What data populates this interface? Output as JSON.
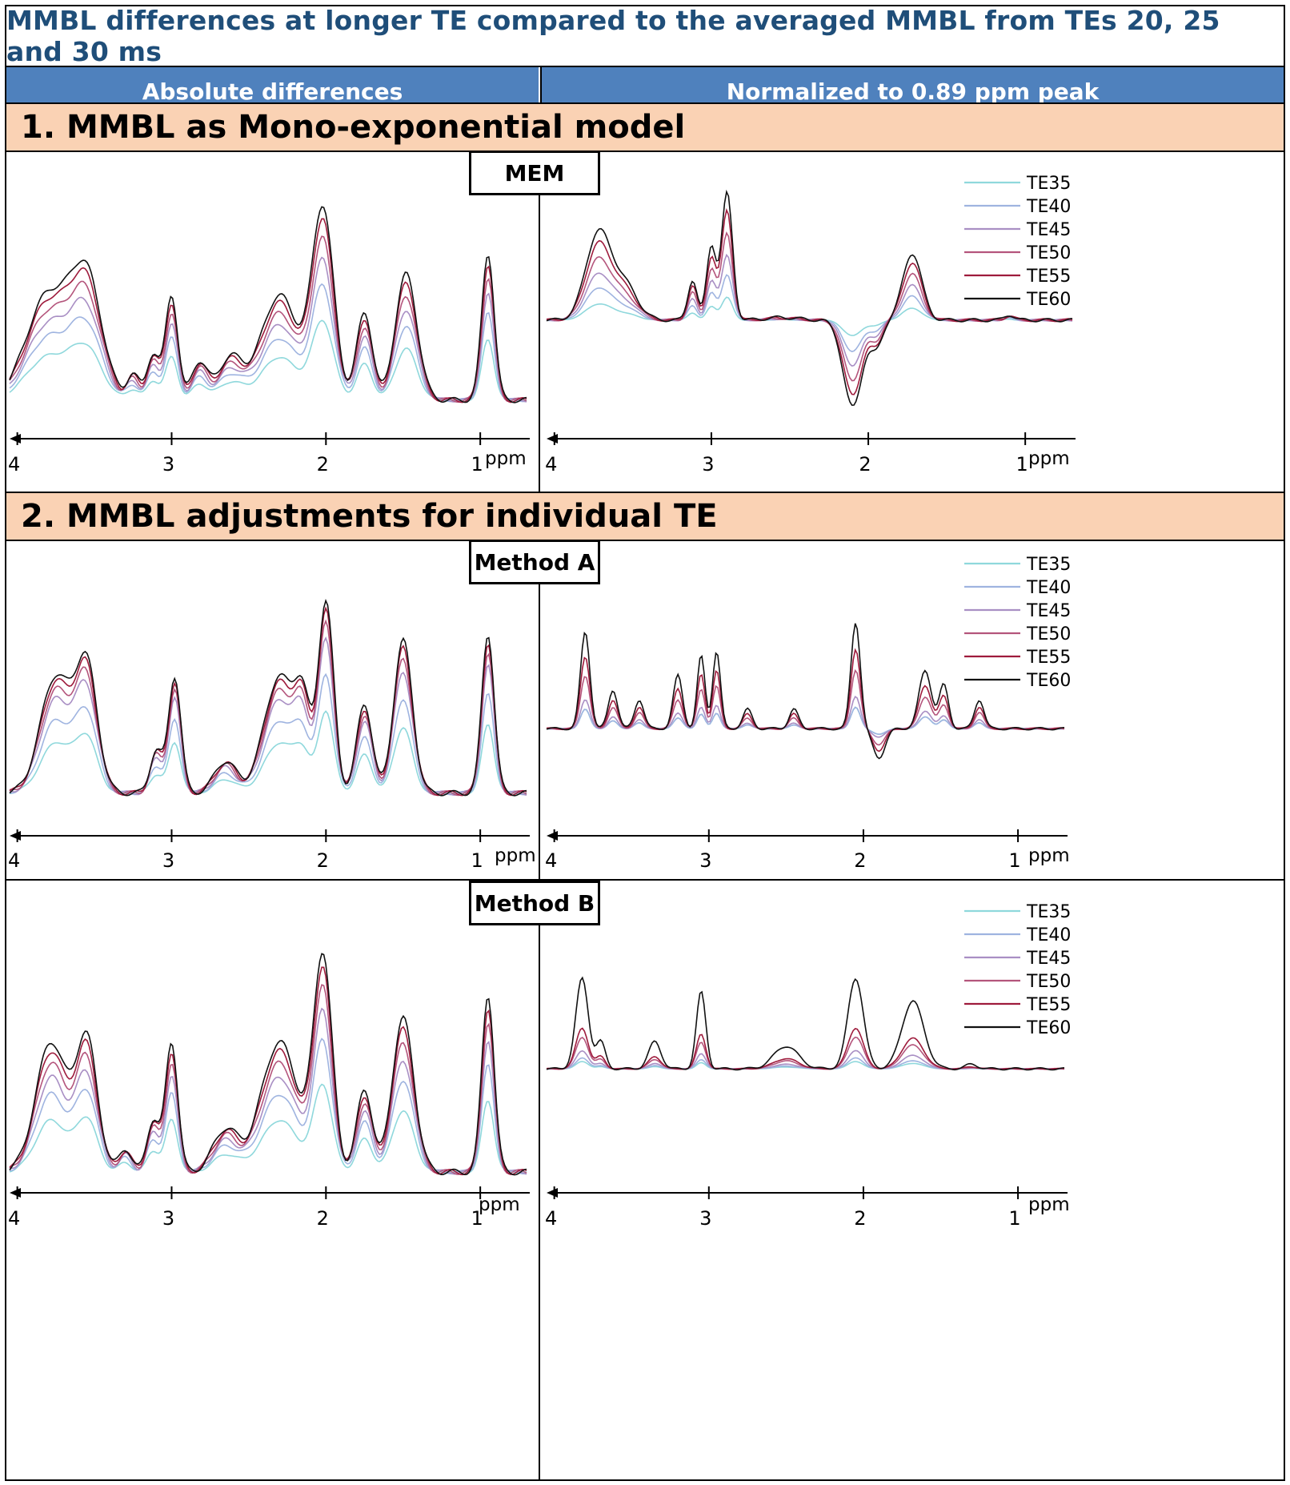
{
  "figure": {
    "title": "MMBL differences at longer TE compared to the averaged MMBL from TEs 20, 25 and 30 ms",
    "column_left": "Absolute differences",
    "column_right": "Normalized to 0.89 ppm peak",
    "section1": "1.  MMBL as Mono-exponential model",
    "section2": "2. MMBL adjustments for individual TE",
    "method_labels": [
      "MEM",
      "Method A",
      "Method B"
    ]
  },
  "series_colors": {
    "TE35": "#8fd8dc",
    "TE40": "#9fb4e0",
    "TE45": "#a98fc4",
    "TE50": "#b4557c",
    "TE55": "#9e1b3c",
    "TE60": "#111111"
  },
  "chart_data": [
    {
      "id": "mem_absolute",
      "type": "line",
      "title": "MEM",
      "panel": "Absolute differences",
      "xlabel": "ppm",
      "xlim": [
        4.05,
        0.7
      ],
      "x_reversed": true,
      "xticks": [
        4,
        3,
        2,
        1
      ],
      "legend": false,
      "series_names": [
        "TE35",
        "TE40",
        "TE45",
        "TE50",
        "TE55",
        "TE60"
      ],
      "scales": [
        0.41,
        0.59,
        0.72,
        0.83,
        0.93,
        1.0
      ],
      "peaks": [
        [
          3.8,
          0.5,
          0.14
        ],
        [
          3.55,
          0.55,
          0.1
        ],
        [
          3.25,
          0.12,
          0.04
        ],
        [
          3.12,
          0.22,
          0.04
        ],
        [
          3.0,
          0.5,
          0.04
        ],
        [
          2.82,
          0.18,
          0.05
        ],
        [
          2.62,
          0.2,
          0.08
        ],
        [
          2.3,
          0.5,
          0.12
        ],
        [
          2.02,
          0.9,
          0.07
        ],
        [
          1.75,
          0.42,
          0.05
        ],
        [
          1.48,
          0.6,
          0.07
        ],
        [
          0.95,
          0.7,
          0.04
        ]
      ],
      "baseline": 0.02,
      "ylim": [
        0,
        1.05
      ]
    },
    {
      "id": "mem_normalized",
      "type": "line",
      "title": "",
      "panel": "Normalized to 0.89 ppm peak",
      "xlabel": "ppm",
      "xlim": [
        4.05,
        0.7
      ],
      "x_reversed": true,
      "xticks": [
        4,
        3,
        2,
        1
      ],
      "legend": true,
      "series_names": [
        "TE35",
        "TE40",
        "TE45",
        "TE50",
        "TE55",
        "TE60"
      ],
      "scales": [
        0.18,
        0.36,
        0.52,
        0.69,
        0.86,
        1.0
      ],
      "peaks": [
        [
          3.72,
          0.65,
          0.08
        ],
        [
          3.55,
          0.25,
          0.08
        ],
        [
          3.12,
          0.3,
          0.03
        ],
        [
          3.0,
          0.55,
          0.03
        ],
        [
          2.9,
          0.95,
          0.035
        ],
        [
          2.55,
          0.02,
          0.1
        ],
        [
          2.1,
          -0.65,
          0.06
        ],
        [
          1.95,
          -0.2,
          0.04
        ],
        [
          1.72,
          0.5,
          0.06
        ],
        [
          1.1,
          0.04,
          0.03
        ]
      ],
      "baseline": 0,
      "ylim": [
        -0.75,
        1.15
      ]
    },
    {
      "id": "method_a_absolute",
      "type": "line",
      "title": "Method A",
      "panel": "Absolute differences",
      "xlabel": "ppm",
      "xlim": [
        4.05,
        0.7
      ],
      "x_reversed": true,
      "xticks": [
        4,
        3,
        2,
        1
      ],
      "legend": false,
      "series_names": [
        "TE35",
        "TE40",
        "TE45",
        "TE50",
        "TE55",
        "TE60"
      ],
      "scales": [
        0.43,
        0.62,
        0.8,
        0.88,
        0.95,
        1.0
      ],
      "peaks": [
        [
          3.75,
          0.55,
          0.1
        ],
        [
          3.55,
          0.58,
          0.07
        ],
        [
          3.1,
          0.2,
          0.04
        ],
        [
          2.98,
          0.55,
          0.04
        ],
        [
          2.65,
          0.15,
          0.07
        ],
        [
          2.3,
          0.55,
          0.1
        ],
        [
          2.15,
          0.35,
          0.05
        ],
        [
          2.0,
          0.9,
          0.05
        ],
        [
          1.75,
          0.42,
          0.05
        ],
        [
          1.5,
          0.72,
          0.06
        ],
        [
          0.95,
          0.75,
          0.04
        ]
      ],
      "baseline": 0.02,
      "ylim": [
        0,
        1.05
      ]
    },
    {
      "id": "method_a_normalized",
      "type": "line",
      "title": "",
      "panel": "Normalized to 0.89 ppm peak",
      "xlabel": "ppm",
      "xlim": [
        4.05,
        0.7
      ],
      "x_reversed": true,
      "xticks": [
        4,
        3,
        2,
        1
      ],
      "legend": true,
      "series_names": [
        "TE35",
        "TE40",
        "TE45",
        "TE50",
        "TE55",
        "TE60"
      ],
      "scales": [
        0.2,
        0.2,
        0.3,
        0.55,
        0.75,
        1.0
      ],
      "peaks": [
        [
          3.8,
          1.0,
          0.03
        ],
        [
          3.62,
          0.4,
          0.03
        ],
        [
          3.45,
          0.3,
          0.03
        ],
        [
          3.2,
          0.55,
          0.03
        ],
        [
          3.05,
          0.75,
          0.025
        ],
        [
          2.95,
          0.8,
          0.025
        ],
        [
          2.75,
          0.2,
          0.03
        ],
        [
          2.45,
          0.2,
          0.03
        ],
        [
          2.05,
          1.1,
          0.03
        ],
        [
          1.9,
          -0.3,
          0.04
        ],
        [
          1.6,
          0.6,
          0.04
        ],
        [
          1.48,
          0.45,
          0.03
        ],
        [
          1.25,
          0.3,
          0.03
        ]
      ],
      "baseline": 0,
      "ylim": [
        -0.75,
        1.15
      ]
    },
    {
      "id": "method_b_absolute",
      "type": "line",
      "title": "Method B",
      "panel": "Absolute differences",
      "xlabel": "ppm",
      "xlim": [
        4.05,
        0.7
      ],
      "x_reversed": true,
      "xticks": [
        4,
        3,
        2,
        1
      ],
      "legend": false,
      "series_names": [
        "TE35",
        "TE40",
        "TE45",
        "TE50",
        "TE55",
        "TE60"
      ],
      "scales": [
        0.4,
        0.6,
        0.73,
        0.84,
        0.93,
        1.0
      ],
      "peaks": [
        [
          3.78,
          0.55,
          0.1
        ],
        [
          3.55,
          0.55,
          0.07
        ],
        [
          3.3,
          0.1,
          0.04
        ],
        [
          3.12,
          0.22,
          0.04
        ],
        [
          3.0,
          0.55,
          0.04
        ],
        [
          2.65,
          0.18,
          0.08
        ],
        [
          2.3,
          0.55,
          0.12
        ],
        [
          2.02,
          0.9,
          0.06
        ],
        [
          1.75,
          0.35,
          0.05
        ],
        [
          1.5,
          0.65,
          0.07
        ],
        [
          0.95,
          0.75,
          0.04
        ]
      ],
      "baseline": 0.02,
      "ylim": [
        0,
        1.05
      ]
    },
    {
      "id": "method_b_normalized",
      "type": "line",
      "title": "",
      "panel": "Normalized to 0.89 ppm peak",
      "xlabel": "ppm",
      "xlim": [
        4.05,
        0.7
      ],
      "x_reversed": true,
      "xticks": [
        4,
        3,
        2,
        1
      ],
      "legend": true,
      "series_names": [
        "TE35",
        "TE40",
        "TE45",
        "TE50",
        "TE55",
        "TE60"
      ],
      "scales": [
        0.08,
        0.12,
        0.2,
        0.35,
        0.45,
        1.0
      ],
      "peaks": [
        [
          3.82,
          1.0,
          0.04
        ],
        [
          3.7,
          0.3,
          0.03
        ],
        [
          3.35,
          0.3,
          0.04
        ],
        [
          3.05,
          0.85,
          0.03
        ],
        [
          2.5,
          0.25,
          0.08
        ],
        [
          2.05,
          1.0,
          0.05
        ],
        [
          1.68,
          0.75,
          0.07
        ],
        [
          1.3,
          0.05,
          0.04
        ]
      ],
      "baseline": 0,
      "ylim": [
        -0.75,
        1.15
      ]
    }
  ]
}
